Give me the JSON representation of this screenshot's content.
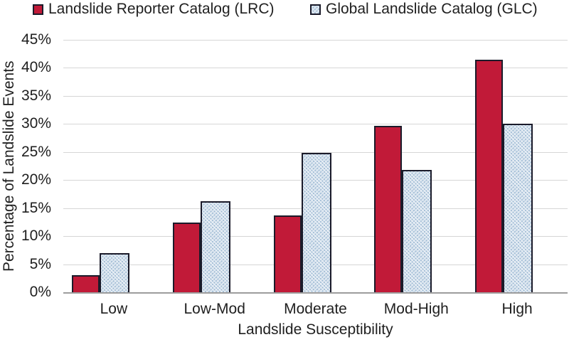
{
  "legend": {
    "items": [
      {
        "label": "Landslide Reporter Catalog (LRC)"
      },
      {
        "label": "Global Landslide Catalog (GLC)"
      }
    ]
  },
  "chart_data": {
    "type": "bar",
    "title": "",
    "xlabel": "Landslide Susceptibility",
    "ylabel": "Percentage of Landslide Events",
    "categories": [
      "Low",
      "Low-Mod",
      "Moderate",
      "Mod-High",
      "High"
    ],
    "series": [
      {
        "name": "Landslide Reporter Catalog (LRC)",
        "fill_style": "solid",
        "color": "#c11a38",
        "values": [
          3.1,
          12.4,
          13.7,
          29.7,
          41.4
        ]
      },
      {
        "name": "Global Landslide Catalog (GLC)",
        "fill_style": "dotted-weave-pattern",
        "color": "#e7eef5",
        "values": [
          7.0,
          16.2,
          24.8,
          21.8,
          30.1
        ]
      }
    ],
    "ylim": [
      0,
      45
    ],
    "ytick_step": 5,
    "yticks": [
      "0%",
      "5%",
      "10%",
      "15%",
      "20%",
      "25%",
      "30%",
      "35%",
      "40%",
      "45%"
    ],
    "grid": true,
    "legend_position": "top",
    "colors": {
      "lrc_fill": "#c11a38",
      "glc_fill": "#e7eef5",
      "glc_dot": "#9db9d3",
      "bar_outline": "#1b1b2a",
      "gridline": "#d6d6d6",
      "axis_line": "#9d9d9d",
      "text": "#1f1f1f"
    }
  }
}
